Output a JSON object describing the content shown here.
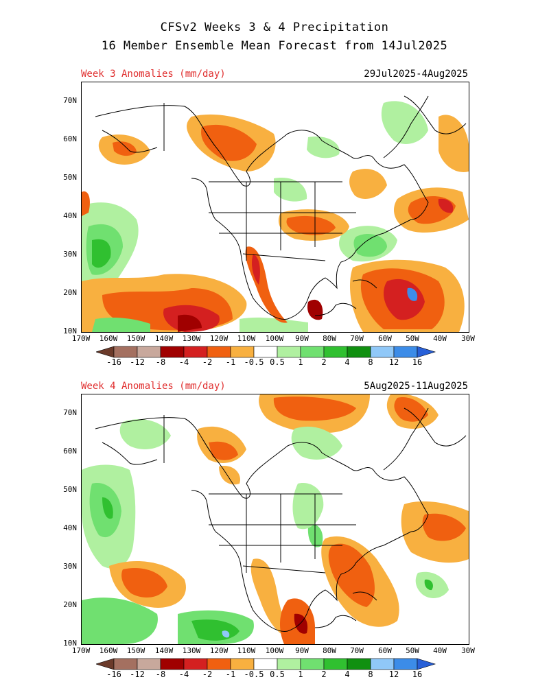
{
  "title_line1": "CFSv2 Weeks 3 & 4 Precipitation",
  "title_line2": "16 Member Ensemble Mean Forecast from 14Jul2025",
  "panels": [
    {
      "label": "Week 3 Anomalies (mm/day)",
      "dates": "29Jul2025-4Aug2025"
    },
    {
      "label": "Week 4 Anomalies (mm/day)",
      "dates": "5Aug2025-11Aug2025"
    }
  ],
  "lat_labels": [
    "70N",
    "60N",
    "50N",
    "40N",
    "30N",
    "20N",
    "10N"
  ],
  "lon_labels": [
    "170W",
    "160W",
    "150W",
    "140W",
    "130W",
    "120W",
    "110W",
    "100W",
    "90W",
    "80W",
    "70W",
    "60W",
    "50W",
    "40W",
    "30W"
  ],
  "colorbar": {
    "labels": [
      "-16",
      "-12",
      "-8",
      "-4",
      "-2",
      "-1",
      "-0.5",
      "0.5",
      "1",
      "2",
      "4",
      "8",
      "12",
      "16"
    ],
    "colors": [
      "#6b3a2a",
      "#a47060",
      "#c8a89c",
      "#a00000",
      "#d42020",
      "#f06010",
      "#f8b040",
      "#ffffff",
      "#b0f0a0",
      "#70e070",
      "#30c030",
      "#109010",
      "#90c8f8",
      "#3c8ce8",
      "#2860d8"
    ]
  }
}
